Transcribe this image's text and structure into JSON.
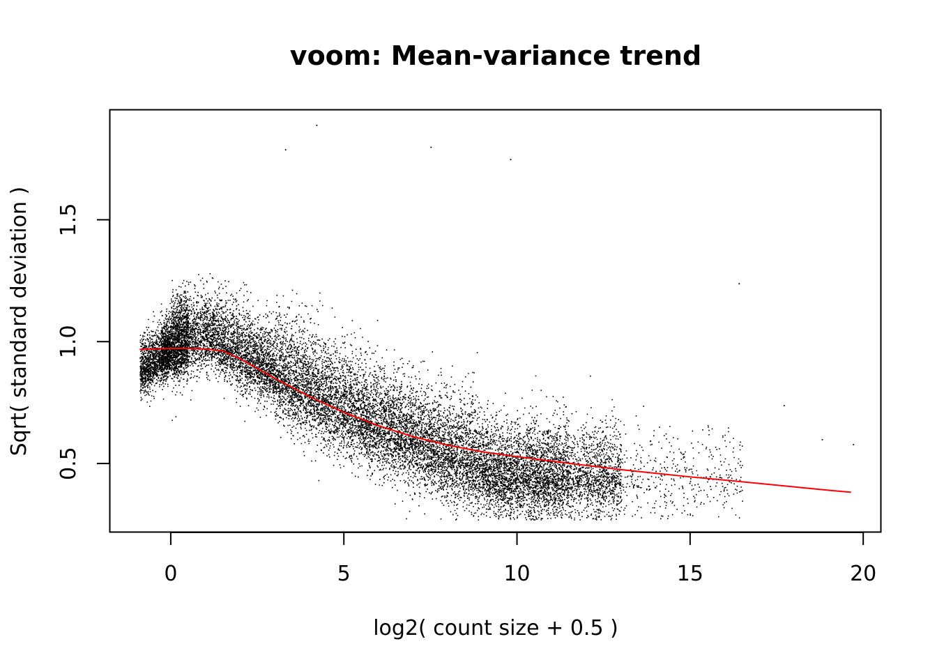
{
  "chart_data": {
    "type": "scatter",
    "title": "voom: Mean-variance trend",
    "xlabel": "log2( count size + 0.5 )",
    "ylabel": "Sqrt( standard deviation )",
    "xlim": [
      -1.75,
      20.5
    ],
    "ylim": [
      0.22,
      1.95
    ],
    "x_ticks": [
      0,
      5,
      10,
      15,
      20
    ],
    "y_ticks": [
      0.5,
      1.0,
      1.5
    ],
    "x_tick_labels": [
      "0",
      "5",
      "10",
      "15",
      "20"
    ],
    "y_tick_labels": [
      "0.5",
      "1.0",
      "1.5"
    ],
    "grid": false,
    "legend": "none",
    "colors": {
      "points": "#000000",
      "trend": "#ff0000",
      "frame": "#000000"
    },
    "series": [
      {
        "kind": "points",
        "point_count_estimate": 18000,
        "sample_points": [
          [
            -0.9,
            0.8
          ],
          [
            -0.5,
            0.92
          ],
          [
            0.0,
            1.0
          ],
          [
            0.5,
            1.05
          ],
          [
            1.0,
            1.03
          ],
          [
            2.0,
            0.9
          ],
          [
            3.0,
            0.82
          ],
          [
            4.0,
            0.76
          ],
          [
            5.0,
            0.7
          ],
          [
            6.0,
            0.63
          ],
          [
            7.0,
            0.58
          ],
          [
            8.0,
            0.54
          ],
          [
            9.0,
            0.5
          ],
          [
            10.0,
            0.48
          ],
          [
            11.0,
            0.46
          ],
          [
            12.0,
            0.44
          ],
          [
            13.0,
            0.45
          ],
          [
            14.0,
            0.47
          ],
          [
            15.0,
            0.44
          ],
          [
            4.2,
            1.89
          ],
          [
            3.3,
            1.79
          ],
          [
            7.5,
            1.8
          ],
          [
            9.8,
            1.75
          ],
          [
            16.4,
            1.24
          ],
          [
            17.7,
            0.74
          ],
          [
            18.8,
            0.6
          ],
          [
            19.7,
            0.58
          ],
          [
            12.0,
            0.28
          ],
          [
            10.0,
            0.31
          ]
        ]
      },
      {
        "kind": "trend",
        "x": [
          -0.9,
          0.0,
          0.5,
          1.0,
          1.5,
          2.0,
          3.0,
          4.0,
          5.0,
          6.0,
          7.0,
          8.0,
          9.0,
          10.0,
          11.0,
          12.0,
          13.0,
          14.0,
          15.0,
          16.0,
          17.0,
          18.0,
          19.0,
          19.65
        ],
        "y": [
          0.968,
          0.972,
          0.972,
          0.97,
          0.962,
          0.93,
          0.85,
          0.775,
          0.71,
          0.655,
          0.61,
          0.575,
          0.548,
          0.528,
          0.51,
          0.492,
          0.475,
          0.46,
          0.445,
          0.432,
          0.418,
          0.404,
          0.39,
          0.382
        ]
      }
    ]
  }
}
